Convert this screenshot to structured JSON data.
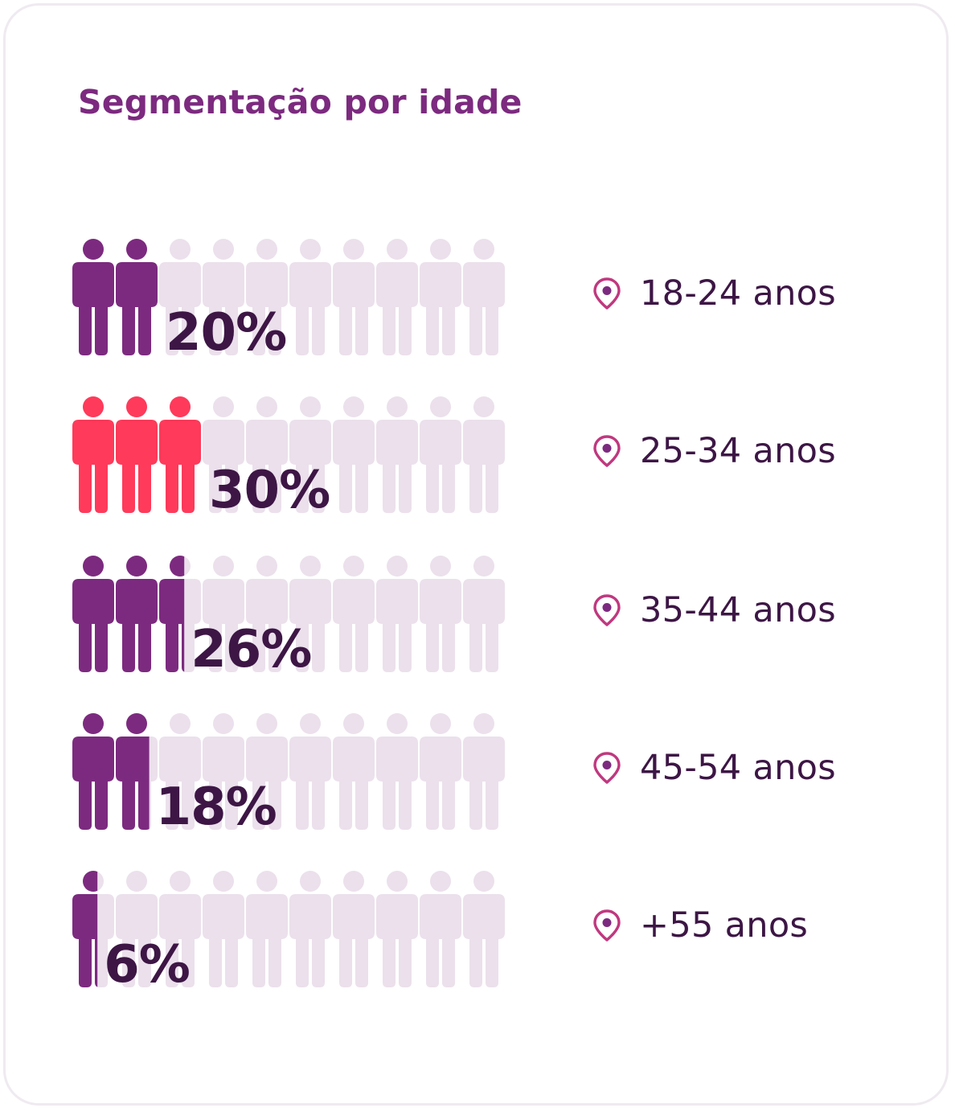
{
  "chart_data": {
    "type": "pictogram",
    "title": "Segmentação por idade",
    "total_icons": 10,
    "series": [
      {
        "label": "18-24 anos",
        "value": 20,
        "value_label": "20%",
        "color": "#7c2a7f"
      },
      {
        "label": "25-34 anos",
        "value": 30,
        "value_label": "30%",
        "color": "#ff3a5a"
      },
      {
        "label": "35-44 anos",
        "value": 26,
        "value_label": "26%",
        "color": "#7c2a7f"
      },
      {
        "label": "45-54 anos",
        "value": 18,
        "value_label": "18%",
        "color": "#7c2a7f"
      },
      {
        "label": "+55 anos",
        "value": 6,
        "value_label": "6%",
        "color": "#7c2a7f"
      }
    ],
    "empty_color": "#ebe0ec",
    "legend_icon": "location-pin-icon",
    "legend_placement": "right"
  }
}
